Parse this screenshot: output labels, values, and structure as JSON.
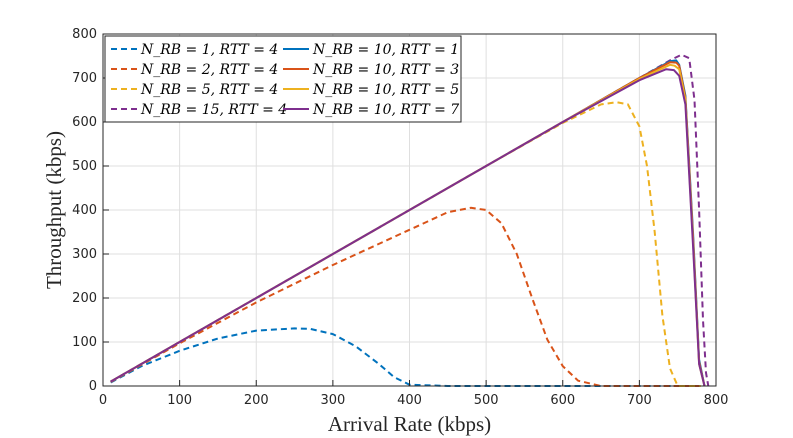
{
  "chart_data": {
    "type": "line",
    "title": "",
    "xlabel": "Arrival Rate (kbps)",
    "ylabel": "Throughput (kbps)",
    "xlim": [
      0,
      800
    ],
    "ylim": [
      0,
      800
    ],
    "xticks": [
      0,
      100,
      200,
      300,
      400,
      500,
      600,
      700,
      800
    ],
    "yticks": [
      0,
      100,
      200,
      300,
      400,
      500,
      600,
      700,
      800
    ],
    "grid": true,
    "legend_location": "top-left",
    "series": [
      {
        "name": "N_RB = 1,  RTT = 4",
        "color": "#0072BD",
        "dash": true,
        "x": [
          10,
          50,
          100,
          150,
          200,
          250,
          270,
          300,
          330,
          360,
          380,
          400,
          450,
          500,
          600,
          700,
          780
        ],
        "y": [
          8,
          45,
          80,
          108,
          126,
          131,
          130,
          118,
          90,
          50,
          20,
          3,
          0,
          0,
          0,
          0,
          0
        ]
      },
      {
        "name": "N_RB = 2,  RTT = 4",
        "color": "#D95319",
        "dash": true,
        "x": [
          10,
          100,
          200,
          300,
          400,
          450,
          480,
          500,
          520,
          540,
          560,
          580,
          600,
          620,
          650,
          700,
          780
        ],
        "y": [
          9,
          97,
          190,
          275,
          355,
          395,
          405,
          400,
          370,
          300,
          200,
          105,
          45,
          12,
          0,
          0,
          0
        ]
      },
      {
        "name": "N_RB = 5,  RTT = 4",
        "color": "#EDB120",
        "dash": true,
        "x": [
          10,
          100,
          200,
          300,
          400,
          500,
          600,
          650,
          670,
          685,
          700,
          710,
          720,
          730,
          740,
          750,
          780
        ],
        "y": [
          10,
          100,
          200,
          300,
          400,
          500,
          598,
          640,
          645,
          640,
          590,
          500,
          350,
          160,
          40,
          0,
          0
        ]
      },
      {
        "name": "N_RB = 15, RTT = 4",
        "color": "#7E2F8E",
        "dash": true,
        "x": [
          10,
          100,
          200,
          300,
          400,
          500,
          600,
          700,
          740,
          755,
          765,
          772,
          778,
          783,
          787,
          790
        ],
        "y": [
          10,
          100,
          200,
          300,
          400,
          500,
          600,
          700,
          740,
          753,
          745,
          650,
          400,
          150,
          30,
          0
        ]
      },
      {
        "name": "N_RB = 10, RTT = 1",
        "color": "#0072BD",
        "dash": false,
        "x": [
          10,
          100,
          200,
          300,
          400,
          500,
          600,
          700,
          740,
          748,
          752,
          760,
          770,
          778,
          785
        ],
        "y": [
          10,
          100,
          200,
          300,
          400,
          500,
          600,
          700,
          738,
          740,
          730,
          660,
          350,
          60,
          0
        ]
      },
      {
        "name": "N_RB = 10, RTT = 3",
        "color": "#D95319",
        "dash": false,
        "x": [
          10,
          100,
          200,
          300,
          400,
          500,
          600,
          700,
          740,
          748,
          752,
          760,
          770,
          778,
          785
        ],
        "y": [
          10,
          100,
          200,
          300,
          400,
          500,
          600,
          700,
          736,
          735,
          728,
          655,
          340,
          55,
          0
        ]
      },
      {
        "name": "N_RB = 10, RTT = 5",
        "color": "#EDB120",
        "dash": false,
        "x": [
          10,
          100,
          200,
          300,
          400,
          500,
          600,
          700,
          740,
          746,
          752,
          760,
          770,
          778,
          785
        ],
        "y": [
          10,
          100,
          200,
          300,
          400,
          500,
          600,
          698,
          730,
          728,
          720,
          650,
          330,
          50,
          0
        ]
      },
      {
        "name": "N_RB = 10, RTT = 7",
        "color": "#7E2F8E",
        "dash": false,
        "x": [
          10,
          100,
          200,
          300,
          400,
          500,
          600,
          700,
          735,
          745,
          752,
          760,
          770,
          778,
          785
        ],
        "y": [
          10,
          100,
          200,
          300,
          400,
          500,
          600,
          695,
          720,
          718,
          705,
          640,
          320,
          50,
          0
        ]
      }
    ]
  }
}
